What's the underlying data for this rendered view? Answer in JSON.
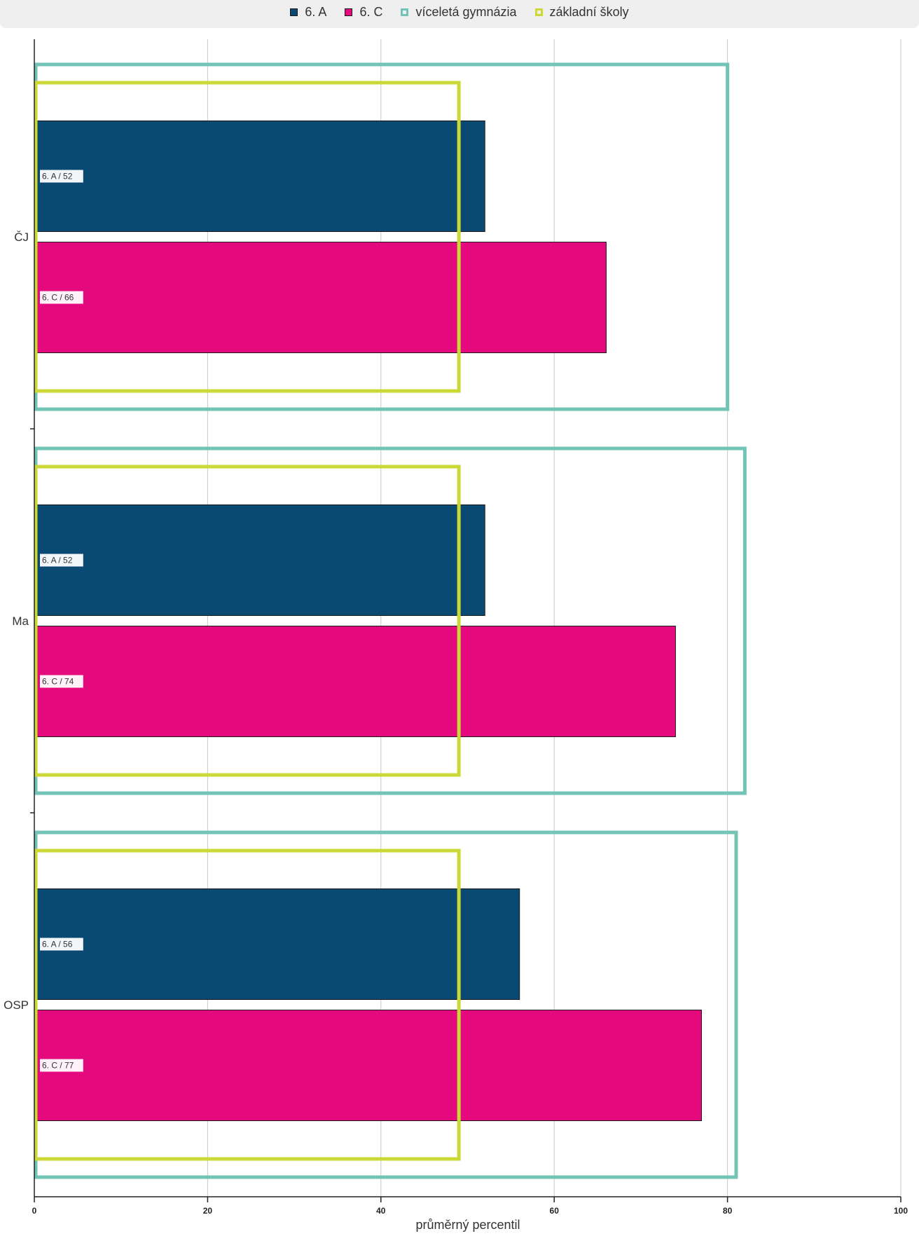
{
  "chart_data": {
    "type": "bar",
    "orientation": "horizontal",
    "categories": [
      "ČJ",
      "Ma",
      "OSP"
    ],
    "series": [
      {
        "name": "6. A",
        "values": [
          52,
          52,
          56
        ],
        "color": "#0a4a72"
      },
      {
        "name": "6. C",
        "values": [
          66,
          74,
          77
        ],
        "color": "#e40a7e"
      }
    ],
    "reference_boxes": [
      {
        "name": "víceletá gymnázia",
        "values": [
          80,
          82,
          81
        ],
        "color": "#72c4b6"
      },
      {
        "name": "základní školy",
        "values": [
          49,
          49,
          49
        ],
        "color": "#ccd835"
      }
    ],
    "bar_labels": [
      [
        "6. A / 52",
        "6. A / 52",
        "6. A / 56"
      ],
      [
        "6. C / 66",
        "6. C / 74",
        "6. C / 77"
      ]
    ],
    "xlabel": "průměrný percentil",
    "xlim": [
      0,
      100
    ],
    "xticks": [
      0,
      20,
      40,
      60,
      80,
      100
    ],
    "grid": true,
    "legend_position": "top"
  }
}
